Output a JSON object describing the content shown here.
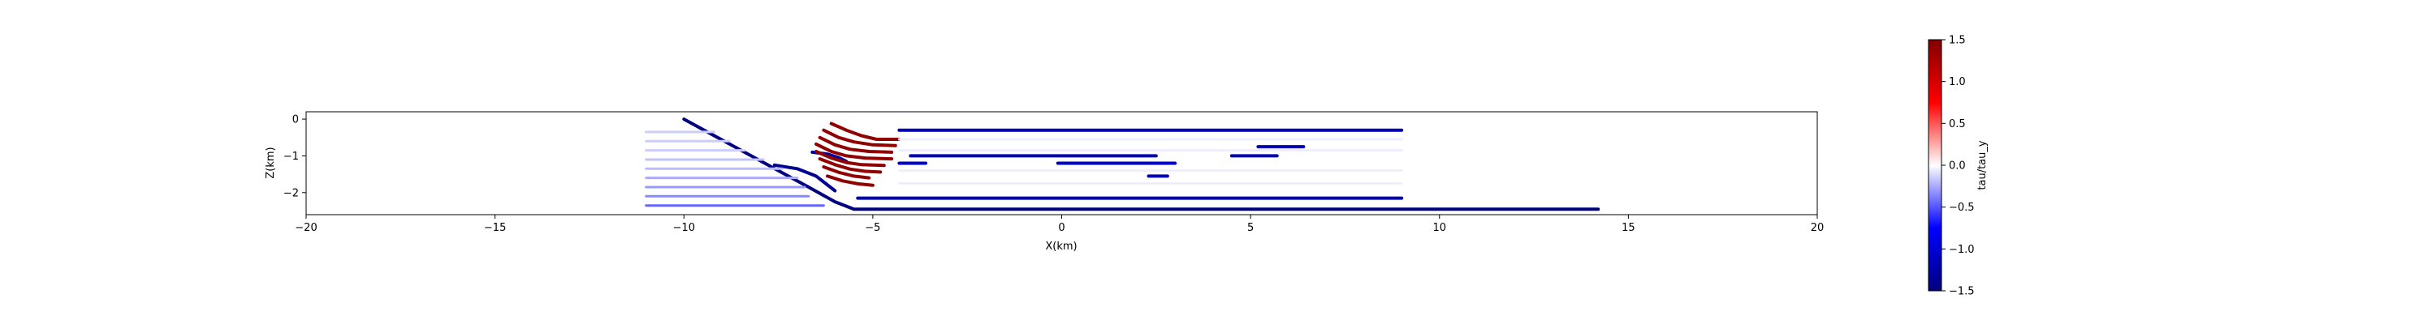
{
  "chart_data": {
    "type": "line",
    "title": "",
    "xlabel": "X(km)",
    "ylabel": "Z(km)",
    "xlim": [
      -20,
      20
    ],
    "ylim": [
      -2.6,
      0.2
    ],
    "xticks": [
      -20,
      -15,
      -10,
      -5,
      0,
      5,
      10,
      15,
      20
    ],
    "yticks": [
      0,
      -1,
      -2
    ],
    "grid": false,
    "colorbar": {
      "label": "tau/tau_y",
      "range": [
        -1.5,
        1.5
      ],
      "ticks": [
        1.5,
        1.0,
        0.5,
        0.0,
        -0.5,
        -1.0,
        -1.5
      ],
      "colormap": "seismic"
    },
    "series": [
      {
        "x": [
          -10.0,
          -6.7,
          -6.0,
          -5.5,
          14.2
        ],
        "y": [
          0.0,
          -1.85,
          -2.25,
          -2.45,
          -2.45
        ],
        "value": -1.5
      },
      {
        "x": [
          -7.6,
          -7.0,
          -6.5,
          -6.0
        ],
        "y": [
          -1.25,
          -1.35,
          -1.55,
          -1.95
        ],
        "value": -1.4
      },
      {
        "x": [
          -6.6,
          -6.2,
          -5.9,
          -5.7
        ],
        "y": [
          -0.9,
          -0.95,
          -1.05,
          -1.15
        ],
        "value": -1.3
      },
      {
        "x": [
          -6.1,
          -5.7,
          -5.3,
          -4.9,
          -4.3
        ],
        "y": [
          -0.12,
          -0.3,
          -0.45,
          -0.55,
          -0.55
        ],
        "value": 1.4
      },
      {
        "x": [
          -6.3,
          -5.9,
          -5.5,
          -5.0,
          -4.4
        ],
        "y": [
          -0.3,
          -0.5,
          -0.62,
          -0.7,
          -0.72
        ],
        "value": 1.4
      },
      {
        "x": [
          -6.4,
          -6.0,
          -5.6,
          -5.1,
          -4.5
        ],
        "y": [
          -0.5,
          -0.7,
          -0.82,
          -0.88,
          -0.9
        ],
        "value": 1.4
      },
      {
        "x": [
          -6.5,
          -6.1,
          -5.7,
          -5.2,
          -4.5
        ],
        "y": [
          -0.68,
          -0.88,
          -1.0,
          -1.06,
          -1.08
        ],
        "value": 1.4
      },
      {
        "x": [
          -6.5,
          -6.1,
          -5.7,
          -5.3,
          -4.7
        ],
        "y": [
          -0.88,
          -1.06,
          -1.18,
          -1.24,
          -1.26
        ],
        "value": 1.4
      },
      {
        "x": [
          -6.4,
          -6.0,
          -5.6,
          -5.2,
          -4.8
        ],
        "y": [
          -1.08,
          -1.24,
          -1.36,
          -1.42,
          -1.44
        ],
        "value": 1.4
      },
      {
        "x": [
          -6.3,
          -5.9,
          -5.5,
          -5.1
        ],
        "y": [
          -1.3,
          -1.45,
          -1.55,
          -1.6
        ],
        "value": 1.4
      },
      {
        "x": [
          -6.2,
          -5.8,
          -5.4,
          -5.0
        ],
        "y": [
          -1.55,
          -1.68,
          -1.76,
          -1.8
        ],
        "value": 1.4
      },
      {
        "x": [
          -4.3,
          9.0
        ],
        "y": [
          -0.3,
          -0.3
        ],
        "value": -1.2
      },
      {
        "x": [
          -4.0,
          2.5
        ],
        "y": [
          -1.0,
          -1.0
        ],
        "value": -1.2
      },
      {
        "x": [
          -4.3,
          -3.6
        ],
        "y": [
          -1.2,
          -1.2
        ],
        "value": -1.2
      },
      {
        "x": [
          -0.1,
          2.5
        ],
        "y": [
          -1.2,
          -1.2
        ],
        "value": -1.2
      },
      {
        "x": [
          2.3,
          3.0
        ],
        "y": [
          -1.2,
          -1.2
        ],
        "value": -1.1
      },
      {
        "x": [
          2.3,
          2.8
        ],
        "y": [
          -1.55,
          -1.55
        ],
        "value": -1.2
      },
      {
        "x": [
          5.2,
          6.4
        ],
        "y": [
          -0.75,
          -0.75
        ],
        "value": -1.2
      },
      {
        "x": [
          4.5,
          5.7
        ],
        "y": [
          -1.0,
          -1.0
        ],
        "value": -1.2
      },
      {
        "x": [
          -5.4,
          9.0
        ],
        "y": [
          -2.15,
          -2.15
        ],
        "value": -1.2
      },
      {
        "x": [
          -11.0,
          -9.2
        ],
        "y": [
          -0.35,
          -0.35
        ],
        "value": -0.15
      },
      {
        "x": [
          -11.0,
          -8.8
        ],
        "y": [
          -0.6,
          -0.6
        ],
        "value": -0.15
      },
      {
        "x": [
          -11.0,
          -8.4
        ],
        "y": [
          -0.85,
          -0.85
        ],
        "value": -0.15
      },
      {
        "x": [
          -11.0,
          -7.9
        ],
        "y": [
          -1.1,
          -1.1
        ],
        "value": -0.18
      },
      {
        "x": [
          -11.0,
          -7.4
        ],
        "y": [
          -1.35,
          -1.35
        ],
        "value": -0.2
      },
      {
        "x": [
          -11.0,
          -7.0
        ],
        "y": [
          -1.6,
          -1.6
        ],
        "value": -0.25
      },
      {
        "x": [
          -11.0,
          -6.8
        ],
        "y": [
          -1.85,
          -1.85
        ],
        "value": -0.3
      },
      {
        "x": [
          -11.0,
          -6.7
        ],
        "y": [
          -2.1,
          -2.1
        ],
        "value": -0.35
      },
      {
        "x": [
          -11.0,
          -6.3
        ],
        "y": [
          -2.35,
          -2.35
        ],
        "value": -0.45
      },
      {
        "x": [
          -4.3,
          9.0
        ],
        "y": [
          -0.55,
          -0.55
        ],
        "value": -0.05
      },
      {
        "x": [
          -4.3,
          9.0
        ],
        "y": [
          -0.85,
          -0.85
        ],
        "value": -0.05
      },
      {
        "x": [
          -4.3,
          9.0
        ],
        "y": [
          -1.4,
          -1.4
        ],
        "value": -0.05
      },
      {
        "x": [
          -4.3,
          9.0
        ],
        "y": [
          -1.75,
          -1.75
        ],
        "value": -0.05
      }
    ]
  }
}
